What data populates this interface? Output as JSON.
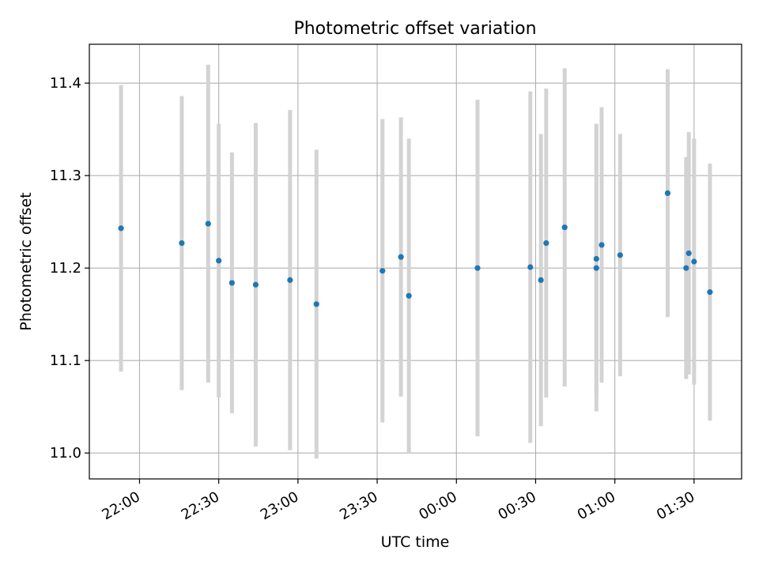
{
  "chart_data": {
    "type": "scatter",
    "title": "Photometric offset variation",
    "xlabel": "UTC time",
    "ylabel": "Photometric offset",
    "grid": true,
    "x_tick_labels": [
      "22:00",
      "22:30",
      "23:00",
      "23:30",
      "00:00",
      "00:30",
      "01:00",
      "01:30"
    ],
    "x_ticks": [
      "2000-01-01T22:00",
      "2000-01-01T22:30",
      "2000-01-01T23:00",
      "2000-01-01T23:30",
      "2000-01-02T00:00",
      "2000-01-02T00:30",
      "2000-01-02T01:00",
      "2000-01-02T01:30"
    ],
    "xlim": [
      "2000-01-01T21:41",
      "2000-01-02T01:48"
    ],
    "y_ticks": [
      11.0,
      11.1,
      11.2,
      11.3,
      11.4
    ],
    "y_tick_labels": [
      "11.0",
      "11.1",
      "11.2",
      "11.3",
      "11.4"
    ],
    "ylim": [
      10.972,
      11.442
    ],
    "colors": {
      "points": "#1f77b4",
      "errorbars": "#d3d3d3",
      "grid": "#b0b0b0"
    },
    "points": [
      {
        "x": "2000-01-01T21:53",
        "y": 11.243,
        "err": 0.155
      },
      {
        "x": "2000-01-01T22:16",
        "y": 11.227,
        "err": 0.159
      },
      {
        "x": "2000-01-01T22:26",
        "y": 11.248,
        "err": 0.172
      },
      {
        "x": "2000-01-01T22:30",
        "y": 11.208,
        "err": 0.148
      },
      {
        "x": "2000-01-01T22:35",
        "y": 11.184,
        "err": 0.141
      },
      {
        "x": "2000-01-01T22:44",
        "y": 11.182,
        "err": 0.175
      },
      {
        "x": "2000-01-01T22:57",
        "y": 11.187,
        "err": 0.184
      },
      {
        "x": "2000-01-01T23:07",
        "y": 11.161,
        "err": 0.167
      },
      {
        "x": "2000-01-01T23:32",
        "y": 11.197,
        "err": 0.164
      },
      {
        "x": "2000-01-01T23:39",
        "y": 11.212,
        "err": 0.151
      },
      {
        "x": "2000-01-01T23:42",
        "y": 11.17,
        "err": 0.17
      },
      {
        "x": "2000-01-02T00:08",
        "y": 11.2,
        "err": 0.182
      },
      {
        "x": "2000-01-02T00:28",
        "y": 11.201,
        "err": 0.19
      },
      {
        "x": "2000-01-02T00:32",
        "y": 11.187,
        "err": 0.158
      },
      {
        "x": "2000-01-02T00:34",
        "y": 11.227,
        "err": 0.167
      },
      {
        "x": "2000-01-02T00:41",
        "y": 11.244,
        "err": 0.172
      },
      {
        "x": "2000-01-02T00:53",
        "y": 11.21,
        "err": 0.146
      },
      {
        "x": "2000-01-02T00:53",
        "y": 11.2,
        "err": 0.155
      },
      {
        "x": "2000-01-02T00:55",
        "y": 11.225,
        "err": 0.149
      },
      {
        "x": "2000-01-02T01:02",
        "y": 11.214,
        "err": 0.131
      },
      {
        "x": "2000-01-02T01:20",
        "y": 11.281,
        "err": 0.134
      },
      {
        "x": "2000-01-02T01:27",
        "y": 11.2,
        "err": 0.12
      },
      {
        "x": "2000-01-02T01:28",
        "y": 11.216,
        "err": 0.131
      },
      {
        "x": "2000-01-02T01:30",
        "y": 11.207,
        "err": 0.133
      },
      {
        "x": "2000-01-02T01:36",
        "y": 11.174,
        "err": 0.139
      }
    ]
  }
}
